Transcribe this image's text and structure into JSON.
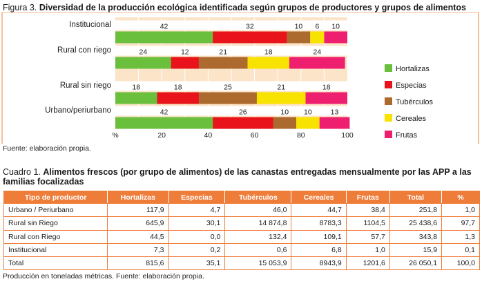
{
  "figure": {
    "label": "Figura 3.",
    "title": "Diversidad de la producción ecológica identificada según grupos de productores y grupos de alimentos",
    "source": "Fuente: elaboración propia."
  },
  "chart_data": {
    "type": "bar",
    "orientation": "horizontal",
    "stacked": true,
    "categories": [
      "Institucional",
      "Rural con riego",
      "Rural sin riego",
      "Urbano/periurbano"
    ],
    "series": [
      {
        "name": "Hortalizas",
        "color": "#6abf3d",
        "values": [
          42,
          24,
          18,
          42
        ]
      },
      {
        "name": "Especias",
        "color": "#e8131b",
        "values": [
          32,
          12,
          18,
          26
        ]
      },
      {
        "name": "Tubérculos",
        "color": "#ad6a2e",
        "values": [
          10,
          21,
          25,
          10
        ]
      },
      {
        "name": "Cereales",
        "color": "#f7e200",
        "values": [
          6,
          18,
          21,
          10
        ]
      },
      {
        "name": "Frutas",
        "color": "#ef1f6f",
        "values": [
          10,
          24,
          18,
          13
        ]
      }
    ],
    "xlim": [
      0,
      100
    ],
    "x_ticks": [
      "%",
      "20",
      "40",
      "60",
      "80",
      "100"
    ],
    "legend_position": "right",
    "background_color": "#fbe4c8"
  },
  "table": {
    "label": "Cuadro 1.",
    "title": "Alimentos frescos (por grupo de alimentos) de las canastas entregadas mensualmente por las APP a las familias focalizadas",
    "headers": [
      "Tipo de productor",
      "Hortalizas",
      "Especias",
      "Tubérculos",
      "Cereales",
      "Frutas",
      "Total",
      "%"
    ],
    "rows": [
      [
        "Urbano / Periurbano",
        "117,9",
        "4,7",
        "46,0",
        "44,7",
        "38,4",
        "251,8",
        "1,0"
      ],
      [
        "Rural sin Riego",
        "645,9",
        "30,1",
        "14 874,8",
        "8783,3",
        "1104,5",
        "25 438,6",
        "97,7"
      ],
      [
        "Rural con Riego",
        "44,5",
        "0,0",
        "132,4",
        "109,1",
        "57,7",
        "343,8",
        "1,3"
      ],
      [
        "Institucional",
        "7,3",
        "0,2",
        "0,6",
        "6,8",
        "1,0",
        "15,9",
        "0,1"
      ],
      [
        "Total",
        "815,6",
        "35,1",
        "15 053,9",
        "8943,9",
        "1201,6",
        "26 050,1",
        "100,0"
      ]
    ],
    "note": "Producción en toneladas métricas. Fuente: elaboración propia.",
    "header_color": "#ef7d3a"
  }
}
